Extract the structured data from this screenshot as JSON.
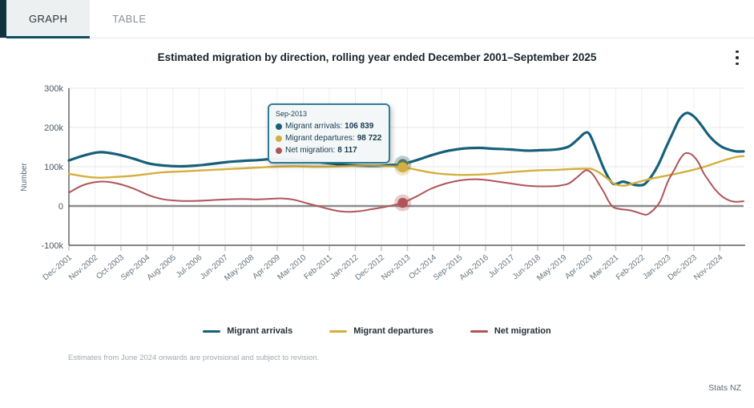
{
  "tabs": [
    {
      "label": "GRAPH",
      "active": true
    },
    {
      "label": "TABLE",
      "active": false
    }
  ],
  "header": {
    "title": "Estimated migration by direction, rolling year ended December 2001–September 2025"
  },
  "menu_icon": "kebab-menu",
  "colors": {
    "arrivals": "#17607a",
    "departures": "#d5af3d",
    "net": "#b05458",
    "tab_underline": "#0e4f63",
    "grid": "#efefef",
    "zero_line": "#8c8c8c",
    "axis": "#3f3f3f",
    "tick": "#b9c9d8",
    "axis_text": "#66737e",
    "ytick_text": "#4d5760",
    "tooltip_border": "#2e7e95"
  },
  "chart_data": {
    "type": "line",
    "title": "Estimated migration by direction, rolling year ended December 2001–September 2025",
    "xlabel": "",
    "ylabel": "Number",
    "ylim": [
      -100000,
      300000
    ],
    "grid": true,
    "legend_position": "bottom",
    "y_ticks": [
      {
        "label": "300k",
        "value": 300
      },
      {
        "label": "200k",
        "value": 200
      },
      {
        "label": "100k",
        "value": 100
      },
      {
        "label": "0",
        "value": 0
      },
      {
        "label": "-100k",
        "value": -100
      }
    ],
    "x_domain_months": [
      0,
      285
    ],
    "x_ticks": [
      {
        "month": 0,
        "label": "Dec-2001"
      },
      {
        "month": 11,
        "label": "Nov-2002"
      },
      {
        "month": 22,
        "label": "Oct-2003"
      },
      {
        "month": 33,
        "label": "Sep-2004"
      },
      {
        "month": 44,
        "label": "Aug-2005"
      },
      {
        "month": 55,
        "label": "Jul-2006"
      },
      {
        "month": 66,
        "label": "Jun-2007"
      },
      {
        "month": 77,
        "label": "May-2008"
      },
      {
        "month": 88,
        "label": "Apr-2009"
      },
      {
        "month": 99,
        "label": "Mar-2010"
      },
      {
        "month": 110,
        "label": "Feb-2011"
      },
      {
        "month": 121,
        "label": "Jan-2012"
      },
      {
        "month": 132,
        "label": "Dec-2012"
      },
      {
        "month": 143,
        "label": "Nov-2013"
      },
      {
        "month": 154,
        "label": "Oct-2014"
      },
      {
        "month": 165,
        "label": "Sep-2015"
      },
      {
        "month": 176,
        "label": "Aug-2016"
      },
      {
        "month": 187,
        "label": "Jul-2017"
      },
      {
        "month": 198,
        "label": "Jun-2018"
      },
      {
        "month": 209,
        "label": "May-2019"
      },
      {
        "month": 220,
        "label": "Apr-2020"
      },
      {
        "month": 231,
        "label": "Mar-2021"
      },
      {
        "month": 242,
        "label": "Feb-2022"
      },
      {
        "month": 253,
        "label": "Jan-2023"
      },
      {
        "month": 264,
        "label": "Dec-2023"
      },
      {
        "month": 275,
        "label": "Nov-2024"
      }
    ],
    "series": [
      {
        "name": "Migrant arrivals",
        "key": "arrivals",
        "width": 3.2,
        "points": [
          [
            0,
            116
          ],
          [
            6,
            128
          ],
          [
            13,
            137
          ],
          [
            20,
            132
          ],
          [
            27,
            121
          ],
          [
            34,
            108
          ],
          [
            40,
            103
          ],
          [
            47,
            101
          ],
          [
            54,
            103
          ],
          [
            60,
            107
          ],
          [
            67,
            112
          ],
          [
            74,
            115
          ],
          [
            80,
            117
          ],
          [
            87,
            120
          ],
          [
            94,
            119
          ],
          [
            105,
            112
          ],
          [
            118,
            104
          ],
          [
            130,
            102
          ],
          [
            136,
            104
          ],
          [
            141,
            106.8
          ],
          [
            147,
            117
          ],
          [
            153,
            129
          ],
          [
            159,
            139
          ],
          [
            166,
            146
          ],
          [
            173,
            148
          ],
          [
            179,
            146
          ],
          [
            186,
            144
          ],
          [
            193,
            141
          ],
          [
            199,
            142
          ],
          [
            206,
            144
          ],
          [
            211,
            151
          ],
          [
            215,
            170
          ],
          [
            218,
            186
          ],
          [
            220,
            182
          ],
          [
            223,
            140
          ],
          [
            226,
            95
          ],
          [
            229,
            62
          ],
          [
            231,
            56
          ],
          [
            234,
            62
          ],
          [
            237,
            57
          ],
          [
            240,
            53
          ],
          [
            243,
            55
          ],
          [
            246,
            75
          ],
          [
            249,
            105
          ],
          [
            252,
            146
          ],
          [
            255,
            185
          ],
          [
            258,
            222
          ],
          [
            261,
            237
          ],
          [
            264,
            228
          ],
          [
            267,
            207
          ],
          [
            270,
            182
          ],
          [
            273,
            163
          ],
          [
            276,
            150
          ],
          [
            279,
            143
          ],
          [
            282,
            139
          ],
          [
            285,
            139
          ]
        ]
      },
      {
        "name": "Migrant departures",
        "key": "departures",
        "width": 2.4,
        "points": [
          [
            0,
            82
          ],
          [
            7,
            75
          ],
          [
            13,
            72
          ],
          [
            20,
            74
          ],
          [
            27,
            77
          ],
          [
            34,
            82
          ],
          [
            40,
            86
          ],
          [
            47,
            88
          ],
          [
            54,
            90
          ],
          [
            60,
            92
          ],
          [
            67,
            94
          ],
          [
            74,
            96
          ],
          [
            80,
            98
          ],
          [
            87,
            100
          ],
          [
            95,
            101
          ],
          [
            105,
            100
          ],
          [
            115,
            101
          ],
          [
            125,
            103
          ],
          [
            133,
            102
          ],
          [
            141,
            98.7
          ],
          [
            147,
            92
          ],
          [
            153,
            85
          ],
          [
            159,
            81
          ],
          [
            166,
            79
          ],
          [
            173,
            80
          ],
          [
            179,
            82
          ],
          [
            186,
            86
          ],
          [
            193,
            89
          ],
          [
            199,
            91
          ],
          [
            206,
            92
          ],
          [
            212,
            94
          ],
          [
            218,
            95
          ],
          [
            221,
            94
          ],
          [
            224,
            85
          ],
          [
            227,
            72
          ],
          [
            230,
            58
          ],
          [
            232,
            53
          ],
          [
            235,
            52
          ],
          [
            238,
            57
          ],
          [
            243,
            65
          ],
          [
            248,
            72
          ],
          [
            253,
            78
          ],
          [
            258,
            84
          ],
          [
            263,
            91
          ],
          [
            268,
            99
          ],
          [
            272,
            107
          ],
          [
            276,
            115
          ],
          [
            280,
            122
          ],
          [
            283,
            126
          ],
          [
            285,
            127
          ]
        ]
      },
      {
        "name": "Net migration",
        "key": "net",
        "width": 2,
        "points": [
          [
            0,
            34
          ],
          [
            6,
            53
          ],
          [
            13,
            62
          ],
          [
            20,
            58
          ],
          [
            27,
            45
          ],
          [
            34,
            27
          ],
          [
            40,
            17
          ],
          [
            47,
            13
          ],
          [
            54,
            13
          ],
          [
            60,
            15
          ],
          [
            67,
            17
          ],
          [
            74,
            18
          ],
          [
            80,
            17
          ],
          [
            87,
            19
          ],
          [
            91,
            19
          ],
          [
            95,
            16
          ],
          [
            100,
            8
          ],
          [
            105,
            0
          ],
          [
            110,
            -8
          ],
          [
            114,
            -13
          ],
          [
            118,
            -15
          ],
          [
            123,
            -13
          ],
          [
            128,
            -8
          ],
          [
            133,
            -3
          ],
          [
            137,
            2
          ],
          [
            141,
            8.1
          ],
          [
            147,
            25
          ],
          [
            153,
            44
          ],
          [
            159,
            57
          ],
          [
            166,
            66
          ],
          [
            173,
            68
          ],
          [
            179,
            64
          ],
          [
            186,
            58
          ],
          [
            193,
            52
          ],
          [
            199,
            50
          ],
          [
            206,
            51
          ],
          [
            211,
            57
          ],
          [
            215,
            75
          ],
          [
            218,
            90
          ],
          [
            220,
            88
          ],
          [
            222,
            75
          ],
          [
            224,
            55
          ],
          [
            226,
            35
          ],
          [
            228,
            12
          ],
          [
            230,
            -3
          ],
          [
            233,
            -8
          ],
          [
            236,
            -10
          ],
          [
            239,
            -14
          ],
          [
            242,
            -20
          ],
          [
            244,
            -22
          ],
          [
            246,
            -15
          ],
          [
            248,
            -3
          ],
          [
            250,
            15
          ],
          [
            253,
            62
          ],
          [
            256,
            95
          ],
          [
            258,
            118
          ],
          [
            260,
            133
          ],
          [
            262,
            134
          ],
          [
            264,
            126
          ],
          [
            266,
            110
          ],
          [
            268,
            85
          ],
          [
            270,
            67
          ],
          [
            273,
            42
          ],
          [
            276,
            24
          ],
          [
            279,
            14
          ],
          [
            281,
            11
          ],
          [
            283,
            11
          ],
          [
            285,
            12
          ]
        ]
      }
    ],
    "highlight": {
      "x_label": "Sep-2013",
      "month": 141,
      "markers": [
        {
          "key": "arrivals",
          "value": 106.839
        },
        {
          "key": "departures",
          "value": 98.722
        },
        {
          "key": "net",
          "value": 8.117
        }
      ]
    }
  },
  "tooltip": {
    "title": "Sep-2013",
    "rows": [
      {
        "key": "arrivals",
        "label": "Migrant arrivals:",
        "value": "106 839"
      },
      {
        "key": "departures",
        "label": "Migrant departures:",
        "value": "98 722"
      },
      {
        "key": "net",
        "label": "Net migration:",
        "value": "8 117"
      }
    ]
  },
  "legend": {
    "items": [
      {
        "key": "arrivals",
        "label": "Migrant arrivals"
      },
      {
        "key": "departures",
        "label": "Migrant departures"
      },
      {
        "key": "net",
        "label": "Net migration"
      }
    ]
  },
  "footnote": "Estimates from June 2024 onwards are provisional and subject to revision.",
  "attribution": "Stats NZ"
}
